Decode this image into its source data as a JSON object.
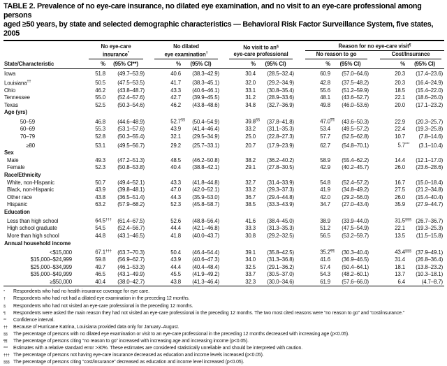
{
  "title": {
    "line1": "TABLE 2. Prevalence of no eye-care insurance, no dilated eye examination, and no visit to an eye-care professional among persons",
    "line2": "aged ≥50 years, by state and selected demographic characteristics — Behavioral Risk Factor Surveillance System, five states, 2005"
  },
  "table": {
    "row_header_label": "State/Characteristic",
    "reason_group_title": "Reason for no eye-care visit^{¶}",
    "groups": [
      {
        "id": "no-eye-care-insurance",
        "lines": [
          "No eye-care",
          "insurance^{*}"
        ],
        "pct": "%",
        "ci": "(95% CI**)"
      },
      {
        "id": "no-dilated-eye-examination",
        "lines": [
          "No dilated",
          "eye examination^{†}"
        ],
        "pct": "%",
        "ci": "(95% CI)"
      },
      {
        "id": "no-visit-eye-care-professional",
        "lines": [
          "No visit to an^{§}",
          "eye-care professional"
        ],
        "pct": "%",
        "ci": "(95% CI)"
      },
      {
        "id": "no-reason-to-go",
        "lines": [
          "No reason to go"
        ],
        "pct": "%",
        "ci": "(95% CI)"
      },
      {
        "id": "cost-insurance",
        "lines": [
          "Cost/Insurance"
        ],
        "pct": "%",
        "ci": "(95% CI)"
      }
    ],
    "rows": [
      {
        "type": "state",
        "label": "Iowa",
        "cells": [
          "51.8",
          "(49.7–53.9)",
          "40.6",
          "(38.3–42.9)",
          "30.4",
          "(28.5–32.4)",
          "60.9",
          "(57.0–64.6)",
          "20.3",
          "(17.4–23.6)"
        ]
      },
      {
        "type": "state",
        "label": "Louisiana^{††}",
        "cells": [
          "50.5",
          "(47.5–53.5)",
          "41.7",
          "(38.3–45.1)",
          "32.0",
          "(29.2–34.9)",
          "42.8",
          "(37.5–48.2)",
          "20.3",
          "(16.4–24.9)"
        ]
      },
      {
        "type": "state",
        "label": "Ohio",
        "cells": [
          "46.2",
          "(43.8–48.7)",
          "43.3",
          "(40.6–46.1)",
          "33.1",
          "(30.8–35.4)",
          "55.6",
          "(51.2–59.9)",
          "18.5",
          "(15.4–22.0)"
        ]
      },
      {
        "type": "state",
        "label": "Tennessee",
        "cells": [
          "55.0",
          "(52.4–57.6)",
          "42.7",
          "(39.9–45.5)",
          "31.2",
          "(28.9–33.6)",
          "48.1",
          "(43.6–52.7)",
          "22.1",
          "(18.6–26.0)"
        ]
      },
      {
        "type": "state",
        "label": "Texas",
        "cells": [
          "52.5",
          "(50.3–54.6)",
          "46.2",
          "(43.8–48.6)",
          "34.8",
          "(32.7–36.9)",
          "49.8",
          "(46.0–53.6)",
          "20.0",
          "(17.1–23.2)"
        ]
      },
      {
        "type": "section",
        "label": "Age (yrs)"
      },
      {
        "type": "age",
        "label": "50–59",
        "cells": [
          "46.8",
          "(44.6–48.9)",
          "52.7^{§§}",
          "(50.4–54.9)",
          "39.8^{§§}",
          "(37.8–41.8)",
          "47.0^{¶¶}",
          "(43.6–50.3)",
          "22.9",
          "(20.3–25.7)"
        ]
      },
      {
        "type": "age",
        "label": "60–69",
        "cells": [
          "55.3",
          "(53.1–57.6)",
          "43.9",
          "(41.4–46.4)",
          "33.2",
          "(31.1–35.3)",
          "53.4",
          "(49.5–57.2)",
          "22.4",
          "(19.3–25.8)"
        ]
      },
      {
        "type": "age",
        "label": "70–79",
        "cells": [
          "52.8",
          "(50.3–55.4)",
          "32.1",
          "(29.5–34.9)",
          "25.0",
          "(22.8–27.3)",
          "57.7",
          "(52.5–62.8)",
          "10.7",
          "(7.8–14.6)"
        ]
      },
      {
        "type": "age",
        "label": "≥80",
        "cells": [
          "53.1",
          "(49.5–56.7)",
          "29.2",
          "(25.7–33.1)",
          "20.7",
          "(17.9–23.9)",
          "62.7",
          "(54.8–70.1)",
          "5.7^{***}",
          "(3.1–10.4)"
        ]
      },
      {
        "type": "section",
        "label": "Sex"
      },
      {
        "type": "cat",
        "label": "Male",
        "cells": [
          "49.3",
          "(47.2–51.3)",
          "48.5",
          "(46.2–50.8)",
          "38.2",
          "(36.2–40.2)",
          "58.9",
          "(55.4–62.2)",
          "14.4",
          "(12.1–17.0)"
        ]
      },
      {
        "type": "cat",
        "label": "Female",
        "cells": [
          "52.3",
          "(50.8–53.8)",
          "40.4",
          "(38.8–42.1)",
          "29.1",
          "(27.8–30.5)",
          "42.9",
          "(40.2–45.7)",
          "26.0",
          "(23.6–28.6)"
        ]
      },
      {
        "type": "section",
        "label": "Race/Ethnicity"
      },
      {
        "type": "cat",
        "label": "White, non-Hispanic",
        "cells": [
          "50.7",
          "(49.4–52.1)",
          "43.3",
          "(41.8–44.8)",
          "32.7",
          "(31.4–33.9)",
          "54.8",
          "(52.4–57.2)",
          "16.7",
          "(15.0–18.4)"
        ]
      },
      {
        "type": "cat",
        "label": "Black, non-Hispanic",
        "cells": [
          "43.9",
          "(39.8–48.1)",
          "47.0",
          "(42.0–52.1)",
          "33.2",
          "(29.3–37.3)",
          "41.9",
          "(34.8–49.2)",
          "27.5",
          "(21.2–34.8)"
        ]
      },
      {
        "type": "cat",
        "label": "Other race",
        "cells": [
          "43.8",
          "(36.5–51.4)",
          "44.3",
          "(35.9–53.0)",
          "36.7",
          "(29.4–44.8)",
          "42.0",
          "(29.2–56.0)",
          "26.0",
          "(15.4–40.4)"
        ]
      },
      {
        "type": "cat",
        "label": "Hispanic",
        "cells": [
          "63.2",
          "(57.9–68.2)",
          "52.3",
          "(45.8–58.7)",
          "38.5",
          "(33.3–43.9)",
          "34.7",
          "(27.0–43.4)",
          "35.9",
          "(27.9–44.7)"
        ]
      },
      {
        "type": "section",
        "label": "Education"
      },
      {
        "type": "cat",
        "label": "Less than high school",
        "cells": [
          "64.5^{†††}",
          "(61.4–67.5)",
          "52.6",
          "(48.8–56.4)",
          "41.6",
          "(38.4–45.0)",
          "38.9",
          "(33.9–44.0)",
          "31.5^{§§§}",
          "(26.7–36.7)"
        ]
      },
      {
        "type": "cat",
        "label": "High school graduate",
        "cells": [
          "54.5",
          "(52.4–56.7)",
          "44.4",
          "(42.1–46.8)",
          "33.3",
          "(31.3–35.3)",
          "51.2",
          "(47.5–54.9)",
          "22.1",
          "(19.3–25.3)"
        ]
      },
      {
        "type": "cat",
        "label": "More than high school",
        "cells": [
          "44.8",
          "(43.1–46.5)",
          "41.8",
          "(40.0–43.7)",
          "30.8",
          "(29.2–32.5)",
          "56.5",
          "(53.2–59.7)",
          "13.5",
          "(11.5–15.8)"
        ]
      },
      {
        "type": "section",
        "label": "Annual household income"
      },
      {
        "type": "inc",
        "label": "<$15,000",
        "cells": [
          "67.1^{†††}",
          "(63.7–70.3)",
          "50.4",
          "(46.4–54.4)",
          "39.1",
          "(35.8–42.5)",
          "35.2^{¶¶}",
          "(30.3–40.4)",
          "43.4^{§§§}",
          "(37.9–49.1)"
        ]
      },
      {
        "type": "inc",
        "label": "$15,000–$24,999",
        "cells": [
          "59.8",
          "(56.9–62.7)",
          "43.9",
          "(40.6–47.3)",
          "34.0",
          "(31.3–36.8)",
          "41.6",
          "(36.9–46.5)",
          "31.4",
          "(26.8–36.4)"
        ]
      },
      {
        "type": "inc",
        "label": "$25,000–$34,999",
        "cells": [
          "49.7",
          "(46.1–53.3)",
          "44.4",
          "(40.4–48.4)",
          "32.5",
          "(29.1–36.2)",
          "57.4",
          "(50.4–64.1)",
          "18.1",
          "(13.8–23.2)"
        ]
      },
      {
        "type": "inc",
        "label": "$35,000–$49,999",
        "cells": [
          "46.5",
          "(43.1–49.9)",
          "45.5",
          "(41.9–49.2)",
          "33.7",
          "(30.5–37.0)",
          "54.3",
          "(48.2–60.1)",
          "13.7",
          "(10.3–18.1)"
        ]
      },
      {
        "type": "inc",
        "label": "≥$50,000",
        "cells": [
          "40.4",
          "(38.0–42.7)",
          "43.8",
          "(41.3–46.4)",
          "32.3",
          "(30.0–34.6)",
          "61.9",
          "(57.6–66.0)",
          "6.4",
          "(4.7–8.7)"
        ]
      }
    ]
  },
  "footnotes": [
    {
      "marker": "*",
      "text": "Respondents who had no health insurance coverage for eye care."
    },
    {
      "marker": "†",
      "text": "Respondents who had not had a dilated eye examination in the preceding 12 months."
    },
    {
      "marker": "§",
      "text": "Respondents who had not visited an eye-care professional in the preceding 12 months."
    },
    {
      "marker": "¶",
      "text": "Respondents were asked the main reason they had not visited an eye-care professional in the preceding 12 months. The two most cited reasons were “no reason to go” and “cost/insurance.”"
    },
    {
      "marker": "**",
      "text": "Confidence interval."
    },
    {
      "marker": "††",
      "text": "Because of Hurricane Katrina, Louisiana provided data only for January–August."
    },
    {
      "marker": "§§",
      "text": "The percentage of persons with no dilated eye examination or visit to an eye-care professional in the preceding 12 months decreased with increasing age (p<0.05)."
    },
    {
      "marker": "¶¶",
      "text": "The percentage of persons citing “no reason to go” increased with increasing age and increasing income (p<0.05)."
    },
    {
      "marker": "***",
      "text": "Estimates with a relative standard error >30%. These estimates are considered statistically unreliable and should be interpreted with caution."
    },
    {
      "marker": "†††",
      "text": "The percentage of persons not having eye-care insurance decreased as education and income levels increased (p<0.05)."
    },
    {
      "marker": "§§§",
      "text": "The percentage of persons citing “cost/insurance” decreased as education and income level increased (p<0.05)."
    }
  ]
}
